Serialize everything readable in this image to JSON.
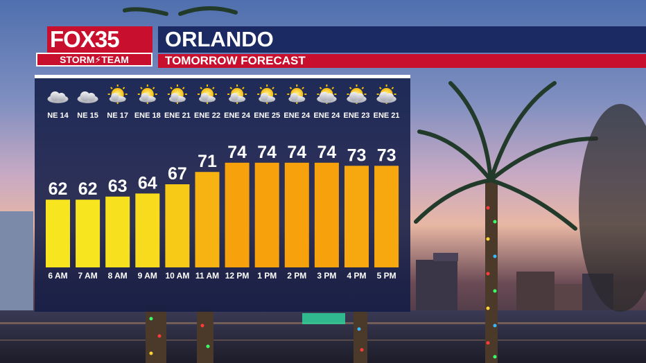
{
  "brand": {
    "logo_fox": "FOX",
    "logo_num": "35",
    "logo_team": "STORM⚡TEAM"
  },
  "header": {
    "title": "ORLANDO",
    "subtitle": "TOMORROW FORECAST"
  },
  "colors": {
    "navy": "#1b2a63",
    "red": "#c8102e",
    "bar_cool": "#f7e61f",
    "bar_warm": "#f7a20d"
  },
  "chart_data": {
    "type": "bar",
    "categories": [
      "6 AM",
      "7 AM",
      "8 AM",
      "9 AM",
      "10 AM",
      "11 AM",
      "12 PM",
      "1 PM",
      "2 PM",
      "3 PM",
      "4 PM",
      "5 PM"
    ],
    "values": [
      62,
      62,
      63,
      64,
      67,
      71,
      74,
      74,
      74,
      74,
      73,
      73
    ],
    "wind": [
      "NE 14",
      "NE 15",
      "NE 17",
      "ENE 18",
      "ENE 21",
      "ENE 22",
      "ENE 24",
      "ENE 25",
      "ENE 24",
      "ENE 24",
      "ENE 23",
      "ENE 21"
    ],
    "sky_icons": [
      "cloudy-icon",
      "cloudy-icon",
      "partly-sunny-icon",
      "partly-sunny-icon",
      "partly-sunny-icon",
      "partly-sunny-icon",
      "partly-sunny-icon",
      "partly-sunny-icon",
      "partly-sunny-icon",
      "partly-cloudy-icon",
      "partly-cloudy-icon",
      "partly-cloudy-icon"
    ],
    "ylim": [
      40,
      76
    ]
  }
}
